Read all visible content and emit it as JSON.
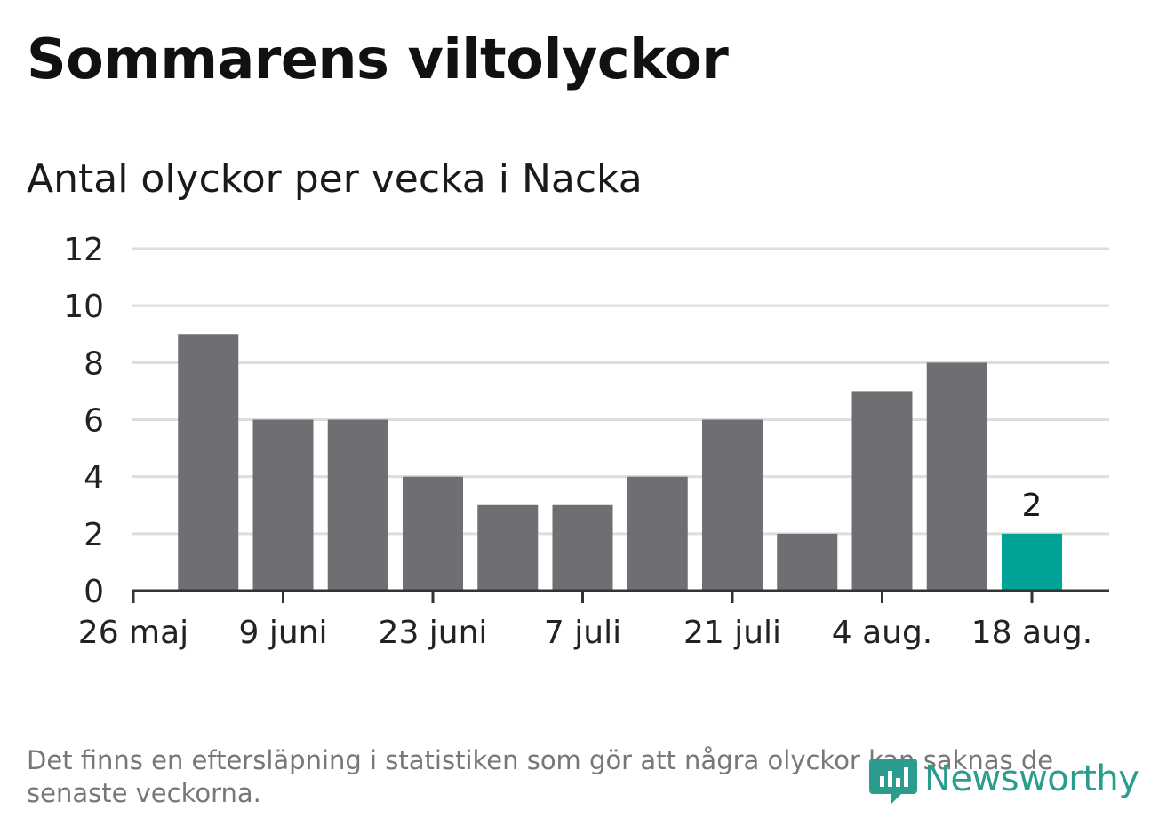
{
  "header": {
    "title": "Sommarens viltolyckor",
    "subtitle": "Antal olyckor per vecka i Nacka"
  },
  "footnote": "Det finns en eftersläpning i statistiken som gör att några olyckor kan saknas de senaste veckorna.",
  "logo": {
    "text": "Newsworthy",
    "icon": "bar-chart-speech-bubble-icon"
  },
  "colors": {
    "bar": "#6f6e73",
    "highlight": "#00a397",
    "grid": "#dddddd",
    "axis": "#333333",
    "logo": "#2a9d8f"
  },
  "chart_data": {
    "type": "bar",
    "title": "Antal olyckor per vecka i Nacka",
    "xlabel": "",
    "ylabel": "",
    "ylim": [
      0,
      12
    ],
    "yticks": [
      "0",
      "2",
      "4",
      "6",
      "8",
      "10",
      "12"
    ],
    "xtick_labels": [
      "26 maj",
      "9 juni",
      "23 juni",
      "7 juli",
      "21 juli",
      "4 aug.",
      "18 aug."
    ],
    "values": [
      9,
      6,
      6,
      4,
      3,
      3,
      4,
      6,
      2,
      7,
      8,
      2
    ],
    "highlight_last": true,
    "highlight_label": "2",
    "grid": true
  }
}
